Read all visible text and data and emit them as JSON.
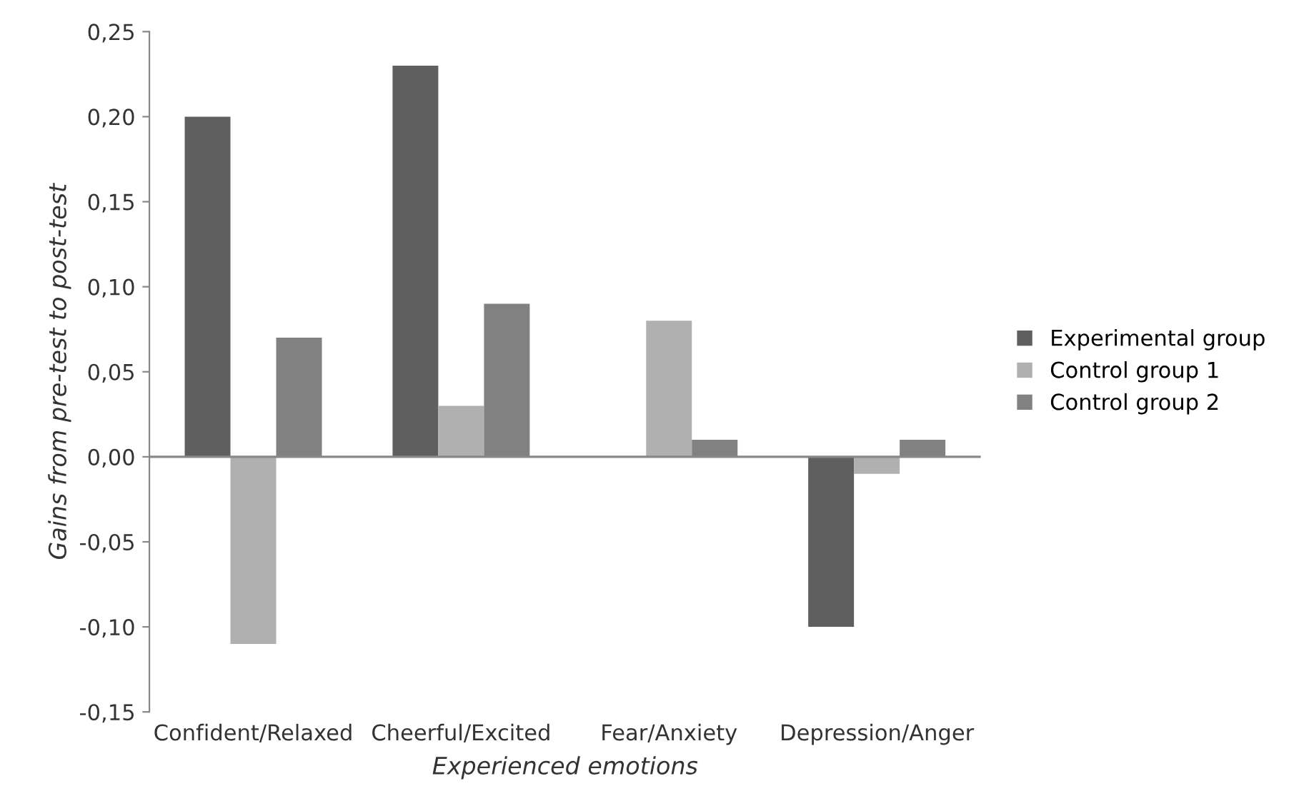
{
  "chart_data": {
    "type": "bar",
    "categories": [
      "Confident/Relaxed",
      "Cheerful/Excited",
      "Fear/Anxiety",
      "Depression/Anger"
    ],
    "series": [
      {
        "name": "Experimental group",
        "color": "#5e5f5e",
        "values": [
          0.2,
          0.23,
          0.0,
          -0.1
        ]
      },
      {
        "name": "Control group 1",
        "color": "#b0b0b0",
        "values": [
          -0.11,
          0.03,
          0.08,
          -0.01
        ]
      },
      {
        "name": "Control group 2",
        "color": "#818181",
        "values": [
          0.07,
          0.09,
          0.01,
          0.01
        ]
      }
    ],
    "xlabel": "Experienced emotions",
    "ylabel": "Gains from pre-test to post-test",
    "ylim": [
      -0.15,
      0.25
    ],
    "yticks": [
      {
        "value": -0.15,
        "label": "-0,15"
      },
      {
        "value": -0.1,
        "label": "-0,10"
      },
      {
        "value": -0.05,
        "label": "-0,05"
      },
      {
        "value": 0.0,
        "label": "0,00"
      },
      {
        "value": 0.05,
        "label": "0,05"
      },
      {
        "value": 0.1,
        "label": "0,10"
      },
      {
        "value": 0.15,
        "label": "0,15"
      },
      {
        "value": 0.2,
        "label": "0,20"
      },
      {
        "value": 0.25,
        "label": "0,25"
      }
    ],
    "ref_lines": [
      {
        "axis": "y",
        "value": 0,
        "color": "#888888",
        "line_style": "solid"
      }
    ],
    "grid": false,
    "legend": "right"
  }
}
